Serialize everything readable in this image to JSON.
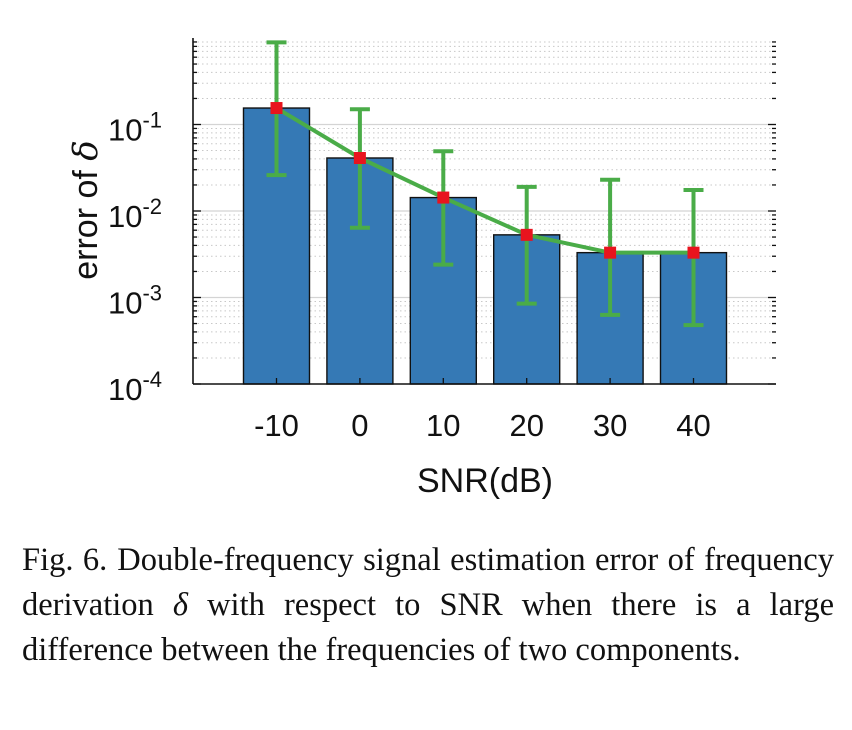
{
  "chart_data": {
    "type": "bar",
    "yscale": "log",
    "categories": [
      "-10",
      "0",
      "10",
      "20",
      "30",
      "40"
    ],
    "values": [
      0.155,
      0.041,
      0.0143,
      0.0053,
      0.0033,
      0.0033
    ],
    "error_lower": [
      0.026,
      0.0064,
      0.0024,
      0.00085,
      0.00063,
      0.00048
    ],
    "error_upper": [
      0.89,
      0.15,
      0.049,
      0.019,
      0.023,
      0.0175
    ],
    "ylim": [
      0.0001,
      1
    ],
    "yticks": [
      {
        "base": "10",
        "exp": "-4"
      },
      {
        "base": "10",
        "exp": "-3"
      },
      {
        "base": "10",
        "exp": "-2"
      },
      {
        "base": "10",
        "exp": "-1"
      }
    ],
    "xlabel": "SNR(dB)",
    "ylabel_prefix": "error of ",
    "ylabel_symbol": "δ",
    "grid": true,
    "bar_color": "#3579b5",
    "line_color": "#4aac48",
    "marker_color": "#e8141e"
  },
  "caption": {
    "label": "Fig. 6.",
    "text_before_symbol": "Double-frequency signal estimation error of frequency derivation ",
    "symbol": "δ",
    "text_after_symbol": " with respect to SNR when there is a large difference between the frequencies of two components."
  }
}
